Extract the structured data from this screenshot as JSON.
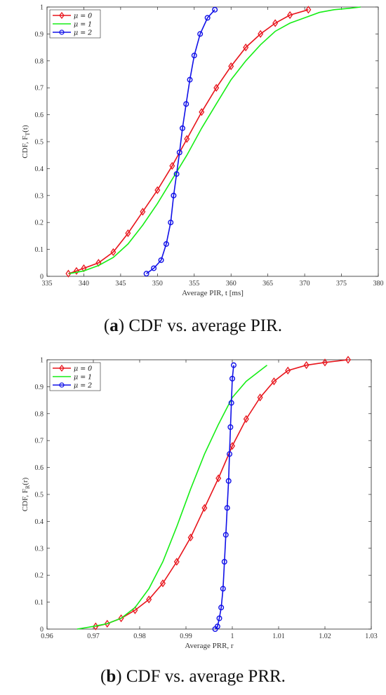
{
  "chart_data": [
    {
      "type": "line",
      "ylabel_main": "CDF, F",
      "ylabel_sub": "T",
      "ylabel_tail": "(t)",
      "xlabel": "Average PIR, t [ms]",
      "xlim": [
        335,
        380
      ],
      "ylim": [
        0,
        1
      ],
      "xticks": [
        "335",
        "340",
        "345",
        "350",
        "355",
        "360",
        "365",
        "370",
        "375",
        "380"
      ],
      "yticks": [
        "0",
        "0.1",
        "0.2",
        "0.3",
        "0.4",
        "0.5",
        "0.6",
        "0.7",
        "0.8",
        "0.9",
        "1"
      ],
      "grid": false,
      "legend_position": "top-left",
      "series": [
        {
          "name": "μ = 0",
          "color": "#e8141b",
          "marker": "diamond",
          "x": [
            337.9,
            339,
            340,
            342,
            344,
            346,
            348,
            350,
            352,
            354,
            356,
            358,
            360,
            362,
            364,
            366,
            368,
            370.5
          ],
          "y": [
            0.01,
            0.02,
            0.03,
            0.05,
            0.09,
            0.16,
            0.24,
            0.32,
            0.41,
            0.51,
            0.61,
            0.7,
            0.78,
            0.85,
            0.9,
            0.94,
            0.97,
            0.99
          ]
        },
        {
          "name": "μ = 1",
          "color": "#16ee16",
          "marker": "none",
          "x": [
            338,
            340,
            342,
            344,
            346,
            348,
            350,
            352,
            354,
            356,
            358,
            360,
            362,
            364,
            366,
            368,
            370,
            372,
            374,
            376,
            377.6
          ],
          "y": [
            0.01,
            0.02,
            0.04,
            0.07,
            0.12,
            0.19,
            0.27,
            0.36,
            0.45,
            0.55,
            0.64,
            0.73,
            0.8,
            0.86,
            0.91,
            0.94,
            0.96,
            0.98,
            0.99,
            0.995,
            1.0
          ]
        },
        {
          "name": "μ = 2",
          "color": "#1010e8",
          "marker": "circle",
          "x": [
            348.5,
            349.5,
            350.5,
            351.2,
            351.8,
            352.2,
            352.6,
            353,
            353.4,
            353.9,
            354.4,
            355,
            355.8,
            356.8,
            357.8
          ],
          "y": [
            0.01,
            0.03,
            0.06,
            0.12,
            0.2,
            0.3,
            0.38,
            0.46,
            0.55,
            0.64,
            0.73,
            0.82,
            0.9,
            0.96,
            0.99
          ]
        }
      ]
    },
    {
      "type": "line",
      "ylabel_main": "CDF, F",
      "ylabel_sub": "R",
      "ylabel_tail": "(r)",
      "xlabel": "Average PRR, r",
      "xlim": [
        0.96,
        1.03
      ],
      "ylim": [
        0,
        1
      ],
      "xticks": [
        "0.96",
        "0.97",
        "0.98",
        "0.99",
        "1",
        "1.01",
        "1.02",
        "1.03"
      ],
      "yticks": [
        "0",
        "0.1",
        "0.2",
        "0.3",
        "0.4",
        "0.5",
        "0.6",
        "0.7",
        "0.8",
        "0.9",
        "1"
      ],
      "grid": false,
      "legend_position": "top-left",
      "series": [
        {
          "name": "μ = 0",
          "color": "#e8141b",
          "marker": "diamond",
          "x": [
            0.9705,
            0.973,
            0.976,
            0.979,
            0.982,
            0.985,
            0.988,
            0.991,
            0.994,
            0.997,
            1.0,
            1.003,
            1.006,
            1.009,
            1.012,
            1.016,
            1.02,
            1.025
          ],
          "y": [
            0.01,
            0.02,
            0.04,
            0.07,
            0.11,
            0.17,
            0.25,
            0.34,
            0.45,
            0.56,
            0.68,
            0.78,
            0.86,
            0.92,
            0.96,
            0.98,
            0.99,
            1.0
          ]
        },
        {
          "name": "μ = 1",
          "color": "#16ee16",
          "marker": "none",
          "x": [
            0.9665,
            0.97,
            0.973,
            0.976,
            0.979,
            0.982,
            0.985,
            0.988,
            0.991,
            0.994,
            0.997,
            1.0,
            1.003,
            1.006,
            1.0075
          ],
          "y": [
            0.0,
            0.01,
            0.02,
            0.04,
            0.08,
            0.15,
            0.25,
            0.38,
            0.52,
            0.65,
            0.76,
            0.86,
            0.92,
            0.96,
            0.98
          ]
        },
        {
          "name": "μ = 2",
          "color": "#1010e8",
          "marker": "circle",
          "x": [
            0.9963,
            0.9968,
            0.9972,
            0.9976,
            0.998,
            0.9983,
            0.9986,
            0.9989,
            0.9992,
            0.9994,
            0.9996,
            0.9998,
            1.0,
            1.0003
          ],
          "y": [
            0.0,
            0.01,
            0.04,
            0.08,
            0.15,
            0.25,
            0.35,
            0.45,
            0.55,
            0.65,
            0.75,
            0.84,
            0.93,
            0.98
          ]
        }
      ]
    }
  ],
  "captions": {
    "a_label": "a",
    "a_text": " CDF vs. average PIR.",
    "b_label": "b",
    "b_text": " CDF vs. average PRR."
  }
}
